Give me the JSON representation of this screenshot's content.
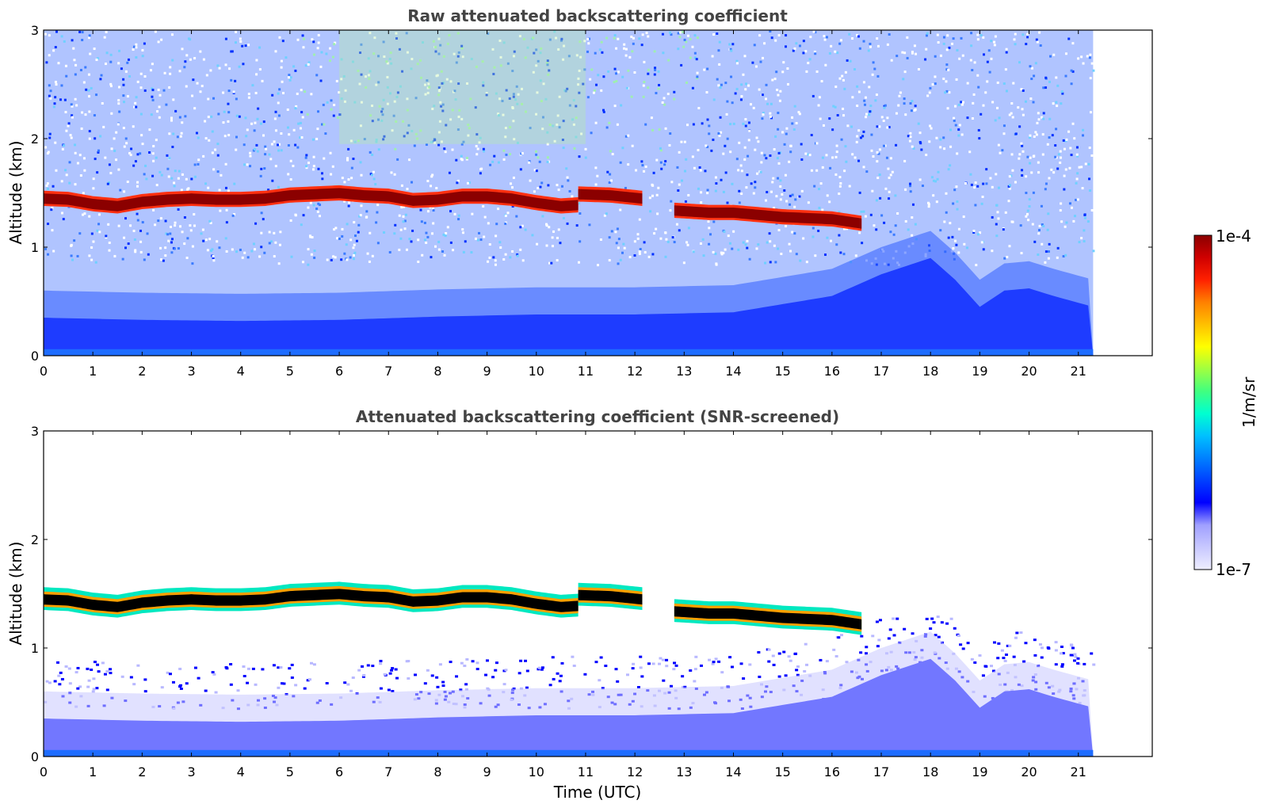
{
  "chart_data": [
    {
      "type": "heatmap",
      "title": "Raw attenuated backscattering coefficient",
      "xlabel": "",
      "ylabel": "Altitude (km)",
      "xlim": [
        0,
        22.5
      ],
      "ylim": [
        0,
        3
      ],
      "x_ticks": [
        0,
        1,
        2,
        3,
        4,
        5,
        6,
        7,
        8,
        9,
        10,
        11,
        12,
        13,
        14,
        15,
        16,
        17,
        18,
        19,
        20,
        21
      ],
      "y_ticks": [
        0,
        1,
        2,
        3
      ],
      "data_end_time": 21.3,
      "layers": [
        {
          "name": "cloud base",
          "times": [
            0,
            0.5,
            1,
            1.5,
            2,
            2.5,
            3,
            3.5,
            4,
            4.5,
            5,
            5.5,
            6,
            6.5,
            7,
            7.5,
            8,
            8.5,
            9,
            9.5,
            10,
            10.5,
            10.85
          ],
          "altitude": [
            1.45,
            1.44,
            1.4,
            1.38,
            1.42,
            1.44,
            1.45,
            1.44,
            1.44,
            1.45,
            1.48,
            1.49,
            1.5,
            1.48,
            1.47,
            1.43,
            1.44,
            1.47,
            1.47,
            1.45,
            1.41,
            1.38,
            1.39
          ]
        },
        {
          "name": "cloud base segment 2",
          "times": [
            10.85,
            11.5,
            12.15
          ],
          "altitude": [
            1.49,
            1.48,
            1.45
          ]
        },
        {
          "name": "cloud base segment 3",
          "times": [
            12.8,
            13.5,
            14,
            14.5,
            15,
            15.5,
            16,
            16.6
          ],
          "altitude": [
            1.34,
            1.32,
            1.32,
            1.3,
            1.28,
            1.27,
            1.26,
            1.22
          ]
        }
      ],
      "aerosol_top": {
        "times": [
          0,
          2,
          4,
          6,
          8,
          10,
          12,
          14,
          16,
          17,
          18,
          18.5,
          19,
          19.5,
          20,
          20.5,
          21.3
        ],
        "altitude": [
          0.35,
          0.33,
          0.32,
          0.33,
          0.36,
          0.38,
          0.38,
          0.4,
          0.55,
          0.75,
          0.9,
          0.7,
          0.45,
          0.6,
          0.62,
          0.55,
          0.45
        ]
      }
    },
    {
      "type": "heatmap",
      "title": "Attenuated backscattering coefficient (SNR-screened)",
      "xlabel": "Time (UTC)",
      "ylabel": "Altitude (km)",
      "xlim": [
        0,
        22.5
      ],
      "ylim": [
        0,
        3
      ],
      "x_ticks": [
        0,
        1,
        2,
        3,
        4,
        5,
        6,
        7,
        8,
        9,
        10,
        11,
        12,
        13,
        14,
        15,
        16,
        17,
        18,
        19,
        20,
        21
      ],
      "y_ticks": [
        0,
        1,
        2,
        3
      ],
      "data_end_time": 21.3
    }
  ],
  "colorbar": {
    "label": "1/m/sr",
    "max_label": "1e-4",
    "min_label": "1e-7",
    "colors": [
      "#eeeeff",
      "#c8c8ff",
      "#a0a0ff",
      "#0000ff",
      "#0040ff",
      "#0080ff",
      "#00c0ff",
      "#00ffd0",
      "#40ff80",
      "#a0ff40",
      "#ffff00",
      "#ffc000",
      "#ff8000",
      "#ff2000",
      "#d00000",
      "#8b0000"
    ]
  }
}
